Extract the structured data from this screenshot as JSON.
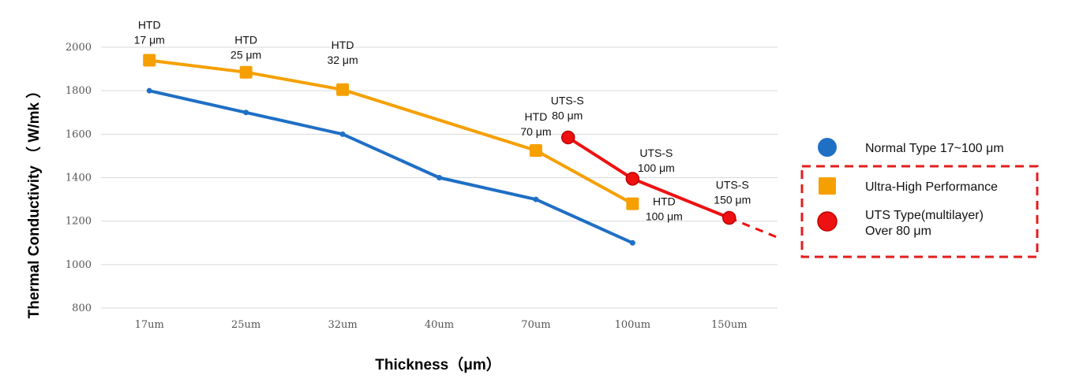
{
  "chart_data": {
    "type": "line",
    "title": "",
    "xlabel": "Thickness（μm）",
    "ylabel": "Thermal Conductivity （ W/mk ）",
    "categories": [
      "17um",
      "25um",
      "32um",
      "40um",
      "70um",
      "100um",
      "150um"
    ],
    "ylim": [
      800,
      2000
    ],
    "yticks": [
      800,
      1000,
      1200,
      1400,
      1600,
      1800,
      2000
    ],
    "grid": true,
    "legend_position": "right",
    "series": [
      {
        "name": "Normal Type 17~100 μm",
        "color": "#1F6FC5",
        "marker": "dot",
        "points": [
          {
            "x": "17um",
            "y": 1800
          },
          {
            "x": "25um",
            "y": 1700
          },
          {
            "x": "32um",
            "y": 1600
          },
          {
            "x": "40um",
            "y": 1400
          },
          {
            "x": "70um",
            "y": 1300
          },
          {
            "x": "100um",
            "y": 1100
          }
        ]
      },
      {
        "name": "Ultra-High Performance",
        "color": "#F5A000",
        "marker": "square",
        "points": [
          {
            "x": "17um",
            "y": 1940,
            "label": [
              "HTD",
              "17 μm"
            ]
          },
          {
            "x": "25um",
            "y": 1885,
            "label": [
              "HTD",
              "25 μm"
            ]
          },
          {
            "x": "32um",
            "y": 1805,
            "label": [
              "HTD",
              "32 μm"
            ]
          },
          {
            "x": "70um",
            "y": 1525,
            "label": [
              "HTD",
              "70 μm"
            ]
          },
          {
            "x": "100um",
            "y": 1280,
            "label": [
              "HTD",
              "100 μm"
            ]
          }
        ]
      },
      {
        "name": "UTS Type(multilayer) Over 80 μm",
        "name_lines": [
          "UTS Type(multilayer)",
          "Over 80 μm"
        ],
        "color": "#EE1111",
        "marker": "circle",
        "points": [
          {
            "x": "80um",
            "y": 1585,
            "label": [
              "UTS-S",
              "80 μm"
            ]
          },
          {
            "x": "100um",
            "y": 1395,
            "label": [
              "UTS-S",
              "100 μm"
            ]
          },
          {
            "x": "150um",
            "y": 1215,
            "label": [
              "UTS-S",
              "150 μm"
            ]
          }
        ],
        "extrapolated": true
      }
    ]
  }
}
